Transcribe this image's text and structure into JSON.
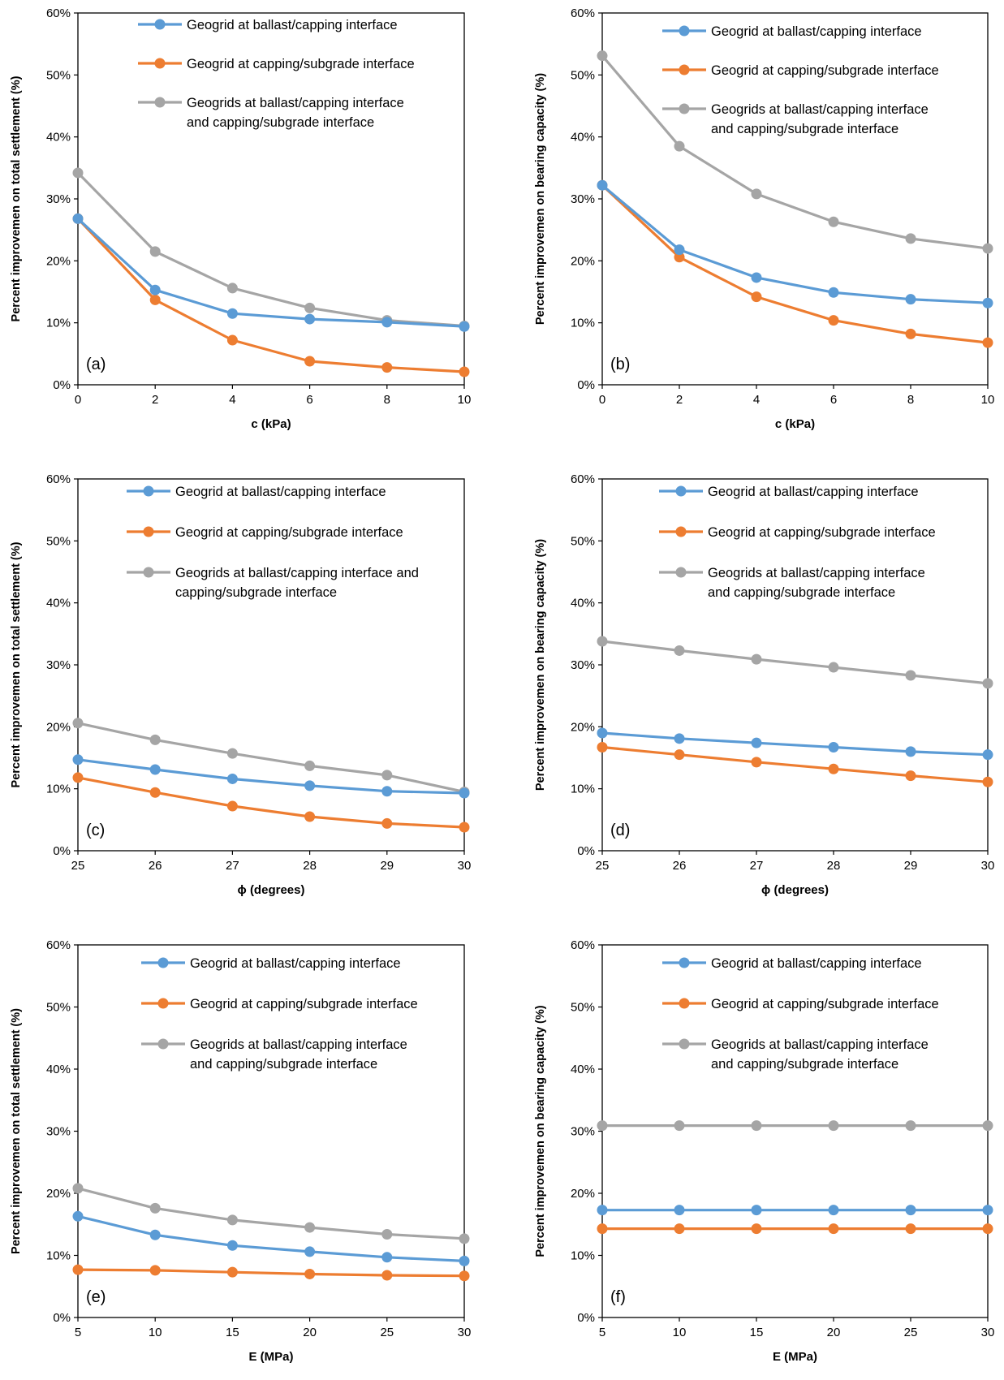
{
  "colors": {
    "blue": "#5B9BD5",
    "orange": "#ED7D31",
    "gray": "#A5A5A5"
  },
  "chart_data": [
    {
      "type": "line",
      "panel_label": "(a)",
      "xlabel": "c (kPa)",
      "ylabel": "Percent improvemen on total settlement (%)",
      "x": [
        0,
        2,
        4,
        6,
        8,
        10
      ],
      "xlim": [
        0,
        10
      ],
      "ylim": [
        0,
        0.6
      ],
      "yticks": [
        "0%",
        "10%",
        "20%",
        "30%",
        "40%",
        "50%",
        "60%"
      ],
      "xticks": [
        "0",
        "2",
        "4",
        "6",
        "8",
        "10"
      ],
      "legend_position": "top-right",
      "series": [
        {
          "name": "Geogrid at ballast/capping interface",
          "name_lines": [
            "Geogrid at ballast/capping interface"
          ],
          "color": "#5B9BD5",
          "values": [
            0.268,
            0.153,
            0.115,
            0.106,
            0.101,
            0.094
          ]
        },
        {
          "name": "Geogrid at capping/subgrade interface",
          "name_lines": [
            "Geogrid at capping/subgrade interface"
          ],
          "color": "#ED7D31",
          "values": [
            0.268,
            0.137,
            0.072,
            0.038,
            0.028,
            0.021
          ]
        },
        {
          "name": "Geogrids at ballast/capping interface and capping/subgrade interface",
          "name_lines": [
            "Geogrids at ballast/capping interface",
            "and capping/subgrade interface"
          ],
          "color": "#A5A5A5",
          "values": [
            0.342,
            0.215,
            0.156,
            0.124,
            0.104,
            0.095
          ]
        }
      ]
    },
    {
      "type": "line",
      "panel_label": "(b)",
      "xlabel": "c (kPa)",
      "ylabel": "Percent improvemen on bearing capacity (%)",
      "x": [
        0,
        2,
        4,
        6,
        8,
        10
      ],
      "xlim": [
        0,
        10
      ],
      "ylim": [
        0,
        0.6
      ],
      "yticks": [
        "0%",
        "10%",
        "20%",
        "30%",
        "40%",
        "50%",
        "60%"
      ],
      "xticks": [
        "0",
        "2",
        "4",
        "6",
        "8",
        "10"
      ],
      "legend_position": "top-right",
      "series": [
        {
          "name": "Geogrid at ballast/capping interface",
          "name_lines": [
            "Geogrid at ballast/capping interface"
          ],
          "color": "#5B9BD5",
          "values": [
            0.322,
            0.218,
            0.173,
            0.149,
            0.138,
            0.132
          ]
        },
        {
          "name": "Geogrid at capping/subgrade interface",
          "name_lines": [
            "Geogrid at capping/subgrade interface"
          ],
          "color": "#ED7D31",
          "values": [
            0.322,
            0.206,
            0.142,
            0.104,
            0.082,
            0.068
          ]
        },
        {
          "name": "Geogrids at ballast/capping interface and capping/subgrade interface",
          "name_lines": [
            "Geogrids at ballast/capping interface",
            "and capping/subgrade interface"
          ],
          "color": "#A5A5A5",
          "values": [
            0.531,
            0.385,
            0.308,
            0.263,
            0.236,
            0.22
          ]
        }
      ]
    },
    {
      "type": "line",
      "panel_label": "(c)",
      "xlabel": "ϕ (degrees)",
      "ylabel": "Percent improvemen on total settlement (%)",
      "x": [
        25,
        26,
        27,
        28,
        29,
        30
      ],
      "xlim": [
        25,
        30
      ],
      "ylim": [
        0,
        0.6
      ],
      "yticks": [
        "0%",
        "10%",
        "20%",
        "30%",
        "40%",
        "50%",
        "60%"
      ],
      "xticks": [
        "25",
        "26",
        "27",
        "28",
        "29",
        "30"
      ],
      "legend_position": "top-right",
      "series": [
        {
          "name": "Geogrid at ballast/capping interface",
          "name_lines": [
            "Geogrid at ballast/capping interface"
          ],
          "color": "#5B9BD5",
          "values": [
            0.147,
            0.131,
            0.116,
            0.105,
            0.096,
            0.093
          ]
        },
        {
          "name": "Geogrid at capping/subgrade interface",
          "name_lines": [
            "Geogrid at capping/subgrade interface"
          ],
          "color": "#ED7D31",
          "values": [
            0.118,
            0.094,
            0.072,
            0.055,
            0.044,
            0.038
          ]
        },
        {
          "name": "Geogrids at ballast/capping interface and capping/subgrade interface",
          "name_lines": [
            "Geogrids at ballast/capping interface and",
            "capping/subgrade interface"
          ],
          "color": "#A5A5A5",
          "values": [
            0.206,
            0.179,
            0.157,
            0.137,
            0.122,
            0.095
          ]
        }
      ]
    },
    {
      "type": "line",
      "panel_label": "(d)",
      "xlabel": "ϕ (degrees)",
      "ylabel": "Percent improvemen on bearing capacity (%)",
      "x": [
        25,
        26,
        27,
        28,
        29,
        30
      ],
      "xlim": [
        25,
        30
      ],
      "ylim": [
        0,
        0.6
      ],
      "yticks": [
        "0%",
        "10%",
        "20%",
        "30%",
        "40%",
        "50%",
        "60%"
      ],
      "xticks": [
        "25",
        "26",
        "27",
        "28",
        "29",
        "30"
      ],
      "legend_position": "top-right",
      "series": [
        {
          "name": "Geogrid at ballast/capping interface",
          "name_lines": [
            "Geogrid at ballast/capping interface"
          ],
          "color": "#5B9BD5",
          "values": [
            0.19,
            0.181,
            0.174,
            0.167,
            0.16,
            0.155
          ]
        },
        {
          "name": "Geogrid at capping/subgrade interface",
          "name_lines": [
            "Geogrid at capping/subgrade interface"
          ],
          "color": "#ED7D31",
          "values": [
            0.167,
            0.155,
            0.143,
            0.132,
            0.121,
            0.111
          ]
        },
        {
          "name": "Geogrids at ballast/capping interface and capping/subgrade interface",
          "name_lines": [
            "Geogrids at ballast/capping interface",
            "and capping/subgrade interface"
          ],
          "color": "#A5A5A5",
          "values": [
            0.338,
            0.323,
            0.309,
            0.296,
            0.283,
            0.27
          ]
        }
      ]
    },
    {
      "type": "line",
      "panel_label": "(e)",
      "xlabel": "E (MPa)",
      "ylabel": "Percent improvemen on total settlement (%)",
      "x": [
        5,
        10,
        15,
        20,
        25,
        30
      ],
      "xlim": [
        5,
        30
      ],
      "ylim": [
        0,
        0.6
      ],
      "yticks": [
        "0%",
        "10%",
        "20%",
        "30%",
        "40%",
        "50%",
        "60%"
      ],
      "xticks": [
        "5",
        "10",
        "15",
        "20",
        "25",
        "30"
      ],
      "legend_position": "top-right",
      "series": [
        {
          "name": "Geogrid at ballast/capping interface",
          "name_lines": [
            "Geogrid at ballast/capping interface"
          ],
          "color": "#5B9BD5",
          "values": [
            0.163,
            0.133,
            0.116,
            0.106,
            0.097,
            0.091
          ]
        },
        {
          "name": "Geogrid at capping/subgrade interface",
          "name_lines": [
            "Geogrid at capping/subgrade interface"
          ],
          "color": "#ED7D31",
          "values": [
            0.077,
            0.076,
            0.073,
            0.07,
            0.068,
            0.067
          ]
        },
        {
          "name": "Geogrids at ballast/capping interface and capping/subgrade interface",
          "name_lines": [
            "Geogrids at ballast/capping interface",
            "and capping/subgrade interface"
          ],
          "color": "#A5A5A5",
          "values": [
            0.208,
            0.176,
            0.157,
            0.145,
            0.134,
            0.127
          ]
        }
      ]
    },
    {
      "type": "line",
      "panel_label": "(f)",
      "xlabel": "E (MPa)",
      "ylabel": "Percent improvemen on bearing capacity (%)",
      "x": [
        5,
        10,
        15,
        20,
        25,
        30
      ],
      "xlim": [
        5,
        30
      ],
      "ylim": [
        0,
        0.6
      ],
      "yticks": [
        "0%",
        "10%",
        "20%",
        "30%",
        "40%",
        "50%",
        "60%"
      ],
      "xticks": [
        "5",
        "10",
        "15",
        "20",
        "25",
        "30"
      ],
      "legend_position": "top-right",
      "series": [
        {
          "name": "Geogrid at ballast/capping interface",
          "name_lines": [
            "Geogrid at ballast/capping interface"
          ],
          "color": "#5B9BD5",
          "values": [
            0.173,
            0.173,
            0.173,
            0.173,
            0.173,
            0.173
          ]
        },
        {
          "name": "Geogrid at capping/subgrade interface",
          "name_lines": [
            "Geogrid at capping/subgrade interface"
          ],
          "color": "#ED7D31",
          "values": [
            0.143,
            0.143,
            0.143,
            0.143,
            0.143,
            0.143
          ]
        },
        {
          "name": "Geogrids at ballast/capping interface and capping/subgrade interface",
          "name_lines": [
            "Geogrids at ballast/capping interface",
            "and capping/subgrade interface"
          ],
          "color": "#A5A5A5",
          "values": [
            0.309,
            0.309,
            0.309,
            0.309,
            0.309,
            0.309
          ]
        }
      ]
    }
  ]
}
